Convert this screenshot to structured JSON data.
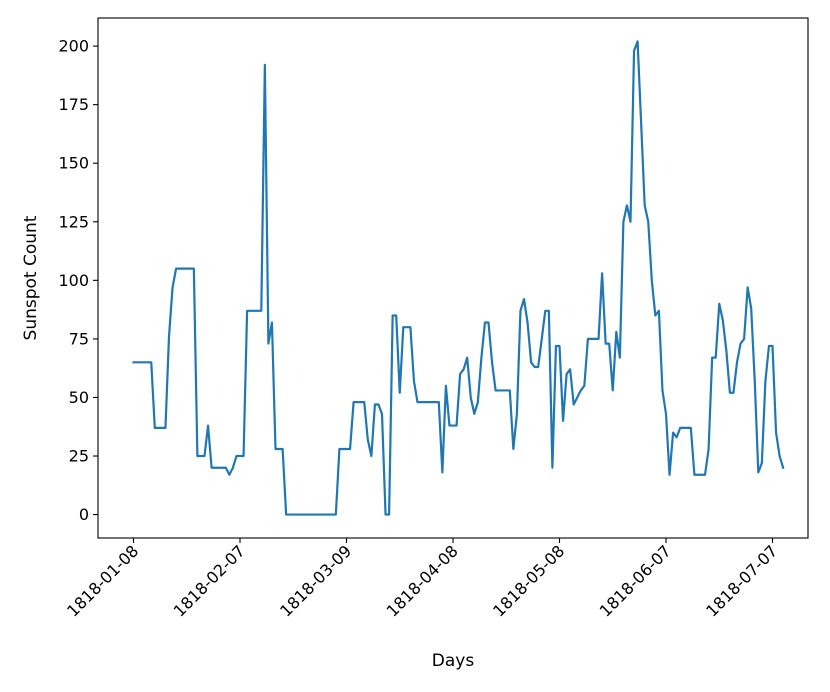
{
  "chart_data": {
    "type": "line",
    "title": "",
    "xlabel": "Days",
    "ylabel": "Sunspot Count",
    "x_tick_labels": [
      "1818-01-08",
      "1818-02-07",
      "1818-03-09",
      "1818-04-08",
      "1818-05-08",
      "1818-06-07",
      "1818-07-07"
    ],
    "y_ticks": [
      0,
      25,
      50,
      75,
      100,
      125,
      150,
      175,
      200
    ],
    "xlim": [
      "1817-12-29",
      "1818-07-17"
    ],
    "ylim": [
      -10,
      212
    ],
    "grid": false,
    "line_color": "#1f77b4",
    "series": [
      {
        "points": [
          [
            "1818-01-08",
            65
          ],
          [
            "1818-01-12",
            65
          ],
          [
            "1818-01-13",
            65
          ],
          [
            "1818-01-14",
            37
          ],
          [
            "1818-01-17",
            37
          ],
          [
            "1818-01-18",
            76
          ],
          [
            "1818-01-19",
            97
          ],
          [
            "1818-01-20",
            105
          ],
          [
            "1818-01-25",
            105
          ],
          [
            "1818-01-26",
            25
          ],
          [
            "1818-01-28",
            25
          ],
          [
            "1818-01-29",
            38
          ],
          [
            "1818-01-30",
            20
          ],
          [
            "1818-02-03",
            20
          ],
          [
            "1818-02-04",
            17
          ],
          [
            "1818-02-05",
            20
          ],
          [
            "1818-02-06",
            25
          ],
          [
            "1818-02-08",
            25
          ],
          [
            "1818-02-09",
            87
          ],
          [
            "1818-02-13",
            87
          ],
          [
            "1818-02-14",
            192
          ],
          [
            "1818-02-15",
            73
          ],
          [
            "1818-02-16",
            82
          ],
          [
            "1818-02-17",
            28
          ],
          [
            "1818-02-19",
            28
          ],
          [
            "1818-02-20",
            0
          ],
          [
            "1818-03-06",
            0
          ],
          [
            "1818-03-07",
            28
          ],
          [
            "1818-03-10",
            28
          ],
          [
            "1818-03-11",
            48
          ],
          [
            "1818-03-14",
            48
          ],
          [
            "1818-03-15",
            32
          ],
          [
            "1818-03-16",
            25
          ],
          [
            "1818-03-17",
            47
          ],
          [
            "1818-03-18",
            47
          ],
          [
            "1818-03-19",
            43
          ],
          [
            "1818-03-20",
            0
          ],
          [
            "1818-03-21",
            0
          ],
          [
            "1818-03-22",
            85
          ],
          [
            "1818-03-23",
            85
          ],
          [
            "1818-03-24",
            52
          ],
          [
            "1818-03-25",
            80
          ],
          [
            "1818-03-27",
            80
          ],
          [
            "1818-03-28",
            57
          ],
          [
            "1818-03-29",
            48
          ],
          [
            "1818-04-04",
            48
          ],
          [
            "1818-04-05",
            18
          ],
          [
            "1818-04-06",
            55
          ],
          [
            "1818-04-07",
            38
          ],
          [
            "1818-04-09",
            38
          ],
          [
            "1818-04-10",
            60
          ],
          [
            "1818-04-11",
            62
          ],
          [
            "1818-04-12",
            67
          ],
          [
            "1818-04-13",
            50
          ],
          [
            "1818-04-14",
            43
          ],
          [
            "1818-04-15",
            48
          ],
          [
            "1818-04-16",
            67
          ],
          [
            "1818-04-17",
            82
          ],
          [
            "1818-04-18",
            82
          ],
          [
            "1818-04-19",
            65
          ],
          [
            "1818-04-20",
            53
          ],
          [
            "1818-04-24",
            53
          ],
          [
            "1818-04-25",
            28
          ],
          [
            "1818-04-26",
            43
          ],
          [
            "1818-04-27",
            87
          ],
          [
            "1818-04-28",
            92
          ],
          [
            "1818-04-29",
            82
          ],
          [
            "1818-04-30",
            65
          ],
          [
            "1818-05-01",
            63
          ],
          [
            "1818-05-02",
            63
          ],
          [
            "1818-05-03",
            75
          ],
          [
            "1818-05-04",
            87
          ],
          [
            "1818-05-05",
            87
          ],
          [
            "1818-05-06",
            20
          ],
          [
            "1818-05-07",
            72
          ],
          [
            "1818-05-08",
            72
          ],
          [
            "1818-05-09",
            40
          ],
          [
            "1818-05-10",
            60
          ],
          [
            "1818-05-11",
            62
          ],
          [
            "1818-05-12",
            47
          ],
          [
            "1818-05-13",
            50
          ],
          [
            "1818-05-14",
            53
          ],
          [
            "1818-05-15",
            55
          ],
          [
            "1818-05-16",
            75
          ],
          [
            "1818-05-19",
            75
          ],
          [
            "1818-05-20",
            103
          ],
          [
            "1818-05-21",
            73
          ],
          [
            "1818-05-22",
            73
          ],
          [
            "1818-05-23",
            53
          ],
          [
            "1818-05-24",
            78
          ],
          [
            "1818-05-25",
            67
          ],
          [
            "1818-05-26",
            125
          ],
          [
            "1818-05-27",
            132
          ],
          [
            "1818-05-28",
            125
          ],
          [
            "1818-05-29",
            198
          ],
          [
            "1818-05-30",
            202
          ],
          [
            "1818-05-31",
            167
          ],
          [
            "1818-06-01",
            132
          ],
          [
            "1818-06-02",
            125
          ],
          [
            "1818-06-03",
            100
          ],
          [
            "1818-06-04",
            85
          ],
          [
            "1818-06-05",
            87
          ],
          [
            "1818-06-06",
            53
          ],
          [
            "1818-06-07",
            43
          ],
          [
            "1818-06-08",
            17
          ],
          [
            "1818-06-09",
            35
          ],
          [
            "1818-06-10",
            33
          ],
          [
            "1818-06-11",
            37
          ],
          [
            "1818-06-14",
            37
          ],
          [
            "1818-06-15",
            17
          ],
          [
            "1818-06-18",
            17
          ],
          [
            "1818-06-19",
            28
          ],
          [
            "1818-06-20",
            67
          ],
          [
            "1818-06-21",
            67
          ],
          [
            "1818-06-22",
            90
          ],
          [
            "1818-06-23",
            83
          ],
          [
            "1818-06-24",
            70
          ],
          [
            "1818-06-25",
            52
          ],
          [
            "1818-06-26",
            52
          ],
          [
            "1818-06-27",
            65
          ],
          [
            "1818-06-28",
            73
          ],
          [
            "1818-06-29",
            75
          ],
          [
            "1818-06-30",
            97
          ],
          [
            "1818-07-01",
            88
          ],
          [
            "1818-07-02",
            57
          ],
          [
            "1818-07-03",
            18
          ],
          [
            "1818-07-04",
            22
          ],
          [
            "1818-07-05",
            57
          ],
          [
            "1818-07-06",
            72
          ],
          [
            "1818-07-07",
            72
          ],
          [
            "1818-07-08",
            35
          ],
          [
            "1818-07-09",
            25
          ],
          [
            "1818-07-10",
            20
          ]
        ]
      }
    ]
  }
}
